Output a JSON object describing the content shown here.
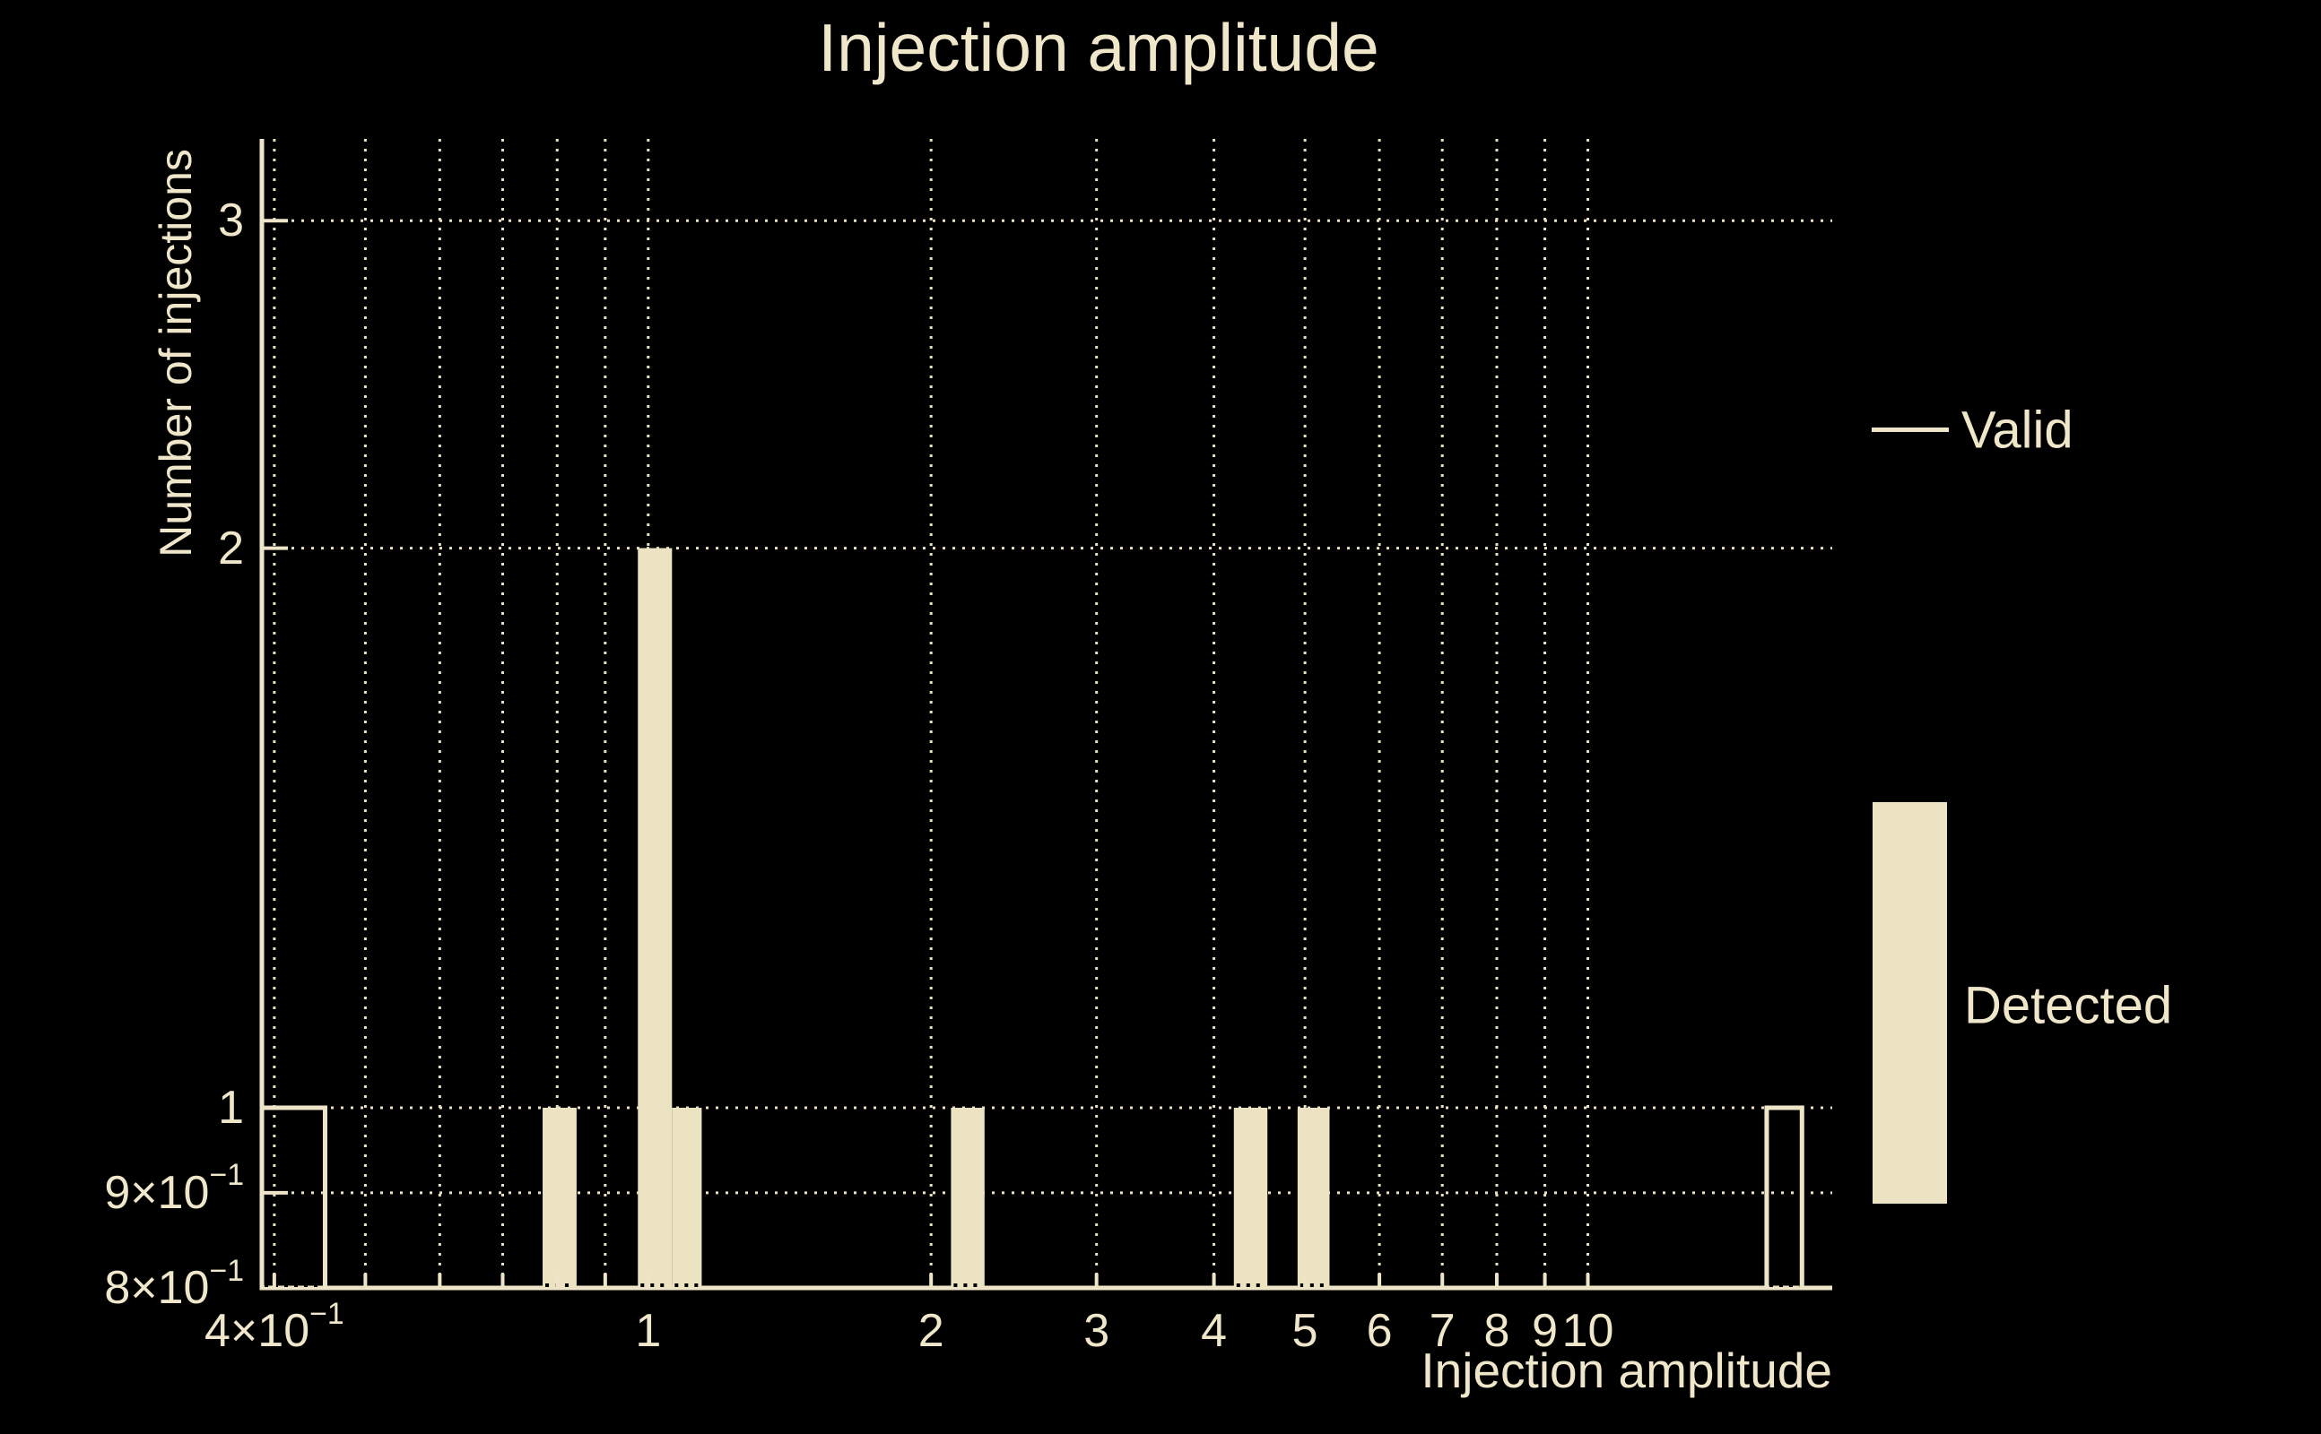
{
  "title": "Injection amplitude",
  "axes": {
    "xlabel": "Injection amplitude",
    "ylabel": "Number of injections",
    "x_scale": "log",
    "y_scale": "log",
    "x_gridlines": [
      0.4,
      0.5,
      0.6,
      0.7,
      0.8,
      0.9,
      1,
      2,
      3,
      4,
      5,
      6,
      7,
      8,
      9,
      10
    ],
    "y_gridlines": [
      0.9,
      1,
      2,
      3
    ],
    "x_ticks": [
      {
        "v": 0.4,
        "text": "4×10",
        "sup": "−1"
      },
      {
        "v": 1,
        "text": "1",
        "sup": ""
      },
      {
        "v": 2,
        "text": "2",
        "sup": ""
      },
      {
        "v": 3,
        "text": "3",
        "sup": ""
      },
      {
        "v": 4,
        "text": "4",
        "sup": ""
      },
      {
        "v": 5,
        "text": "5",
        "sup": ""
      },
      {
        "v": 6,
        "text": "6",
        "sup": ""
      },
      {
        "v": 7,
        "text": "7",
        "sup": ""
      },
      {
        "v": 8,
        "text": "8",
        "sup": ""
      },
      {
        "v": 9,
        "text": "9",
        "sup": ""
      },
      {
        "v": 10,
        "text": "10",
        "sup": ""
      }
    ],
    "y_ticks": [
      {
        "v": 0.8,
        "text": "8×10",
        "sup": "−1"
      },
      {
        "v": 0.9,
        "text": "9×10",
        "sup": "−1"
      },
      {
        "v": 1,
        "text": "1",
        "sup": ""
      },
      {
        "v": 2,
        "text": "2",
        "sup": ""
      },
      {
        "v": 3,
        "text": "3",
        "sup": ""
      }
    ]
  },
  "legend": [
    {
      "name": "Valid",
      "swatch": "line"
    },
    {
      "name": "Detected",
      "swatch": "rect"
    }
  ],
  "colors": {
    "background": "#000000",
    "foreground": "#f0e7cb",
    "axis": "#eee5c8",
    "bar_fill": "#ece3c3"
  },
  "chart_data": {
    "type": "bar",
    "subtype": "histogram-log-log",
    "title": "Injection amplitude",
    "xlabel": "Injection amplitude",
    "ylabel": "Number of injections",
    "xlim": [
      0.388,
      18.2
    ],
    "ylim": [
      0.8,
      3.32
    ],
    "grid": true,
    "legend_position": "right",
    "series": [
      {
        "name": "Valid",
        "style": "outline",
        "bins": [
          {
            "x0": 0.388,
            "x1": 0.453,
            "count": 1
          },
          {
            "x0": 15.5,
            "x1": 16.9,
            "count": 1
          }
        ]
      },
      {
        "name": "Detected",
        "style": "filled",
        "bins": [
          {
            "x0": 0.772,
            "x1": 0.839,
            "count": 1
          },
          {
            "x0": 0.975,
            "x1": 1.06,
            "count": 2
          },
          {
            "x0": 1.06,
            "x1": 1.14,
            "count": 1
          },
          {
            "x0": 2.1,
            "x1": 2.28,
            "count": 1
          },
          {
            "x0": 4.2,
            "x1": 4.56,
            "count": 1
          },
          {
            "x0": 4.91,
            "x1": 5.31,
            "count": 1
          }
        ]
      }
    ]
  }
}
